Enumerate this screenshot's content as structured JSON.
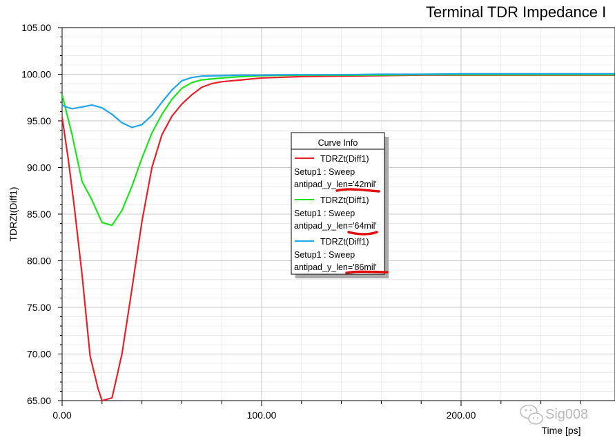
{
  "chart_data": {
    "type": "line",
    "title": "Terminal TDR Impedance I",
    "xlabel": "Time [ps]",
    "ylabel": "TDRZt(Diff1)",
    "xlim": [
      0,
      277
    ],
    "ylim": [
      65,
      105
    ],
    "x_ticks": [
      "0.00",
      "100.00",
      "200.00"
    ],
    "y_ticks": [
      "65.00",
      "70.00",
      "75.00",
      "80.00",
      "85.00",
      "90.00",
      "95.00",
      "100.00",
      "105.00"
    ],
    "grid": true,
    "legend_title": "Curve Info",
    "legend_position": "center",
    "series": [
      {
        "name": "TDRZt(Diff1)",
        "setup": "Setup1 : Sweep",
        "param": "antipad_y_len='42mil'",
        "color": "#e8202a",
        "x": [
          0,
          3,
          6,
          10,
          14,
          18,
          20,
          25,
          30,
          35,
          40,
          45,
          50,
          55,
          60,
          65,
          70,
          75,
          80,
          90,
          100,
          120,
          140,
          160,
          180,
          200,
          220,
          240,
          260,
          277
        ],
        "y": [
          95.4,
          91.0,
          86.0,
          78.5,
          69.8,
          66.3,
          65.0,
          65.3,
          70.0,
          77.0,
          84.2,
          90.0,
          93.5,
          95.5,
          96.8,
          97.8,
          98.6,
          99.0,
          99.2,
          99.4,
          99.6,
          99.75,
          99.8,
          99.85,
          99.9,
          99.9,
          99.9,
          99.9,
          99.9,
          99.9
        ]
      },
      {
        "name": "TDRZt(Diff1)",
        "setup": "Setup1 : Sweep",
        "param": "antipad_y_len='64mil'",
        "color": "#1ce31c",
        "x": [
          0,
          5,
          10,
          15,
          20,
          25,
          30,
          35,
          40,
          45,
          50,
          55,
          60,
          65,
          70,
          80,
          90,
          100,
          120,
          140,
          160,
          180,
          200,
          220,
          240,
          260,
          277
        ],
        "y": [
          97.8,
          93.5,
          88.5,
          86.5,
          84.1,
          83.8,
          85.4,
          88.0,
          91.0,
          93.7,
          95.7,
          97.3,
          98.5,
          99.1,
          99.4,
          99.6,
          99.75,
          99.85,
          99.9,
          99.9,
          99.92,
          99.95,
          99.95,
          99.95,
          99.95,
          99.95,
          99.95
        ]
      },
      {
        "name": "TDRZt(Diff1)",
        "setup": "Setup1 : Sweep",
        "param": "antipad_y_len='86mil'",
        "color": "#1ea5ea",
        "x": [
          0,
          2,
          5,
          10,
          15,
          20,
          25,
          30,
          35,
          40,
          45,
          50,
          55,
          60,
          65,
          70,
          80,
          90,
          100,
          120,
          140,
          160,
          180,
          200,
          220,
          240,
          260,
          277
        ],
        "y": [
          96.7,
          96.5,
          96.3,
          96.5,
          96.7,
          96.4,
          95.7,
          94.8,
          94.3,
          94.6,
          95.6,
          97.0,
          98.3,
          99.3,
          99.65,
          99.8,
          99.85,
          99.9,
          99.9,
          99.95,
          99.95,
          100.0,
          100.0,
          100.05,
          100.05,
          100.05,
          100.05,
          100.05
        ]
      }
    ]
  },
  "watermark": {
    "text": "Sig008",
    "icon": "wechat-icon"
  }
}
